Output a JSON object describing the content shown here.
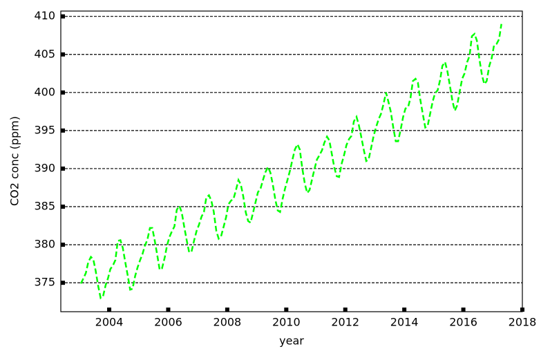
{
  "chart_data": {
    "type": "line",
    "xlabel": "year",
    "ylabel": "CO2 conc (ppm)",
    "xlim": [
      2002.36,
      2018
    ],
    "ylim": [
      371.2,
      410.7
    ],
    "xticks": [
      2004,
      2006,
      2008,
      2010,
      2012,
      2014,
      2016,
      2018
    ],
    "yticks": [
      375,
      380,
      385,
      390,
      395,
      400,
      405,
      410
    ],
    "grid": true,
    "x": [
      2003.04,
      2003.13,
      2003.21,
      2003.29,
      2003.38,
      2003.46,
      2003.54,
      2003.63,
      2003.71,
      2003.79,
      2003.88,
      2003.96,
      2004.04,
      2004.13,
      2004.21,
      2004.29,
      2004.38,
      2004.46,
      2004.54,
      2004.63,
      2004.71,
      2004.79,
      2004.88,
      2004.96,
      2005.04,
      2005.13,
      2005.21,
      2005.29,
      2005.38,
      2005.46,
      2005.54,
      2005.63,
      2005.71,
      2005.79,
      2005.88,
      2005.96,
      2006.04,
      2006.13,
      2006.21,
      2006.29,
      2006.38,
      2006.46,
      2006.54,
      2006.63,
      2006.71,
      2006.79,
      2006.88,
      2006.96,
      2007.04,
      2007.13,
      2007.21,
      2007.29,
      2007.38,
      2007.46,
      2007.54,
      2007.63,
      2007.71,
      2007.79,
      2007.88,
      2007.96,
      2008.04,
      2008.13,
      2008.21,
      2008.29,
      2008.38,
      2008.46,
      2008.54,
      2008.63,
      2008.71,
      2008.79,
      2008.88,
      2008.96,
      2009.04,
      2009.13,
      2009.21,
      2009.29,
      2009.38,
      2009.46,
      2009.54,
      2009.63,
      2009.71,
      2009.79,
      2009.88,
      2009.96,
      2010.04,
      2010.13,
      2010.21,
      2010.29,
      2010.38,
      2010.46,
      2010.54,
      2010.63,
      2010.71,
      2010.79,
      2010.88,
      2010.96,
      2011.04,
      2011.13,
      2011.21,
      2011.29,
      2011.38,
      2011.46,
      2011.54,
      2011.63,
      2011.71,
      2011.79,
      2011.88,
      2011.96,
      2012.04,
      2012.13,
      2012.21,
      2012.29,
      2012.38,
      2012.46,
      2012.54,
      2012.63,
      2012.71,
      2012.79,
      2012.88,
      2012.96,
      2013.04,
      2013.13,
      2013.21,
      2013.29,
      2013.38,
      2013.46,
      2013.54,
      2013.63,
      2013.71,
      2013.79,
      2013.88,
      2013.96,
      2014.04,
      2014.13,
      2014.21,
      2014.29,
      2014.38,
      2014.46,
      2014.54,
      2014.63,
      2014.71,
      2014.79,
      2014.88,
      2014.96,
      2015.04,
      2015.13,
      2015.21,
      2015.29,
      2015.38,
      2015.46,
      2015.54,
      2015.63,
      2015.71,
      2015.79,
      2015.88,
      2015.96,
      2016.04,
      2016.13,
      2016.21,
      2016.29,
      2016.38,
      2016.46,
      2016.54,
      2016.63,
      2016.71,
      2016.79,
      2016.88,
      2016.96,
      2017.04,
      2017.13,
      2017.21,
      2017.29
    ],
    "series": [
      {
        "color": "#00ff00",
        "values": [
          374.9,
          375.6,
          376.3,
          377.7,
          378.4,
          378.1,
          376.6,
          374.5,
          373.0,
          373.2,
          374.7,
          375.6,
          376.8,
          377.3,
          378.0,
          380.5,
          380.6,
          379.6,
          377.8,
          375.9,
          374.1,
          374.2,
          375.9,
          377.0,
          377.9,
          378.8,
          379.9,
          380.6,
          382.2,
          382.2,
          380.6,
          378.6,
          376.7,
          376.9,
          378.3,
          379.9,
          381.0,
          381.8,
          382.4,
          384.6,
          385.1,
          384.2,
          382.4,
          380.5,
          379.0,
          379.1,
          380.6,
          381.8,
          382.6,
          383.7,
          384.3,
          386.2,
          386.5,
          385.8,
          384.4,
          381.8,
          380.8,
          381.1,
          382.4,
          383.6,
          385.3,
          385.8,
          386.0,
          387.1,
          388.5,
          387.9,
          386.4,
          384.2,
          383.1,
          382.9,
          384.3,
          385.6,
          386.9,
          387.4,
          388.5,
          389.5,
          390.2,
          389.5,
          388.0,
          385.9,
          384.5,
          384.3,
          386.1,
          387.4,
          388.5,
          389.8,
          391.2,
          392.5,
          393.2,
          392.5,
          390.1,
          388.0,
          386.8,
          387.2,
          388.7,
          390.0,
          391.2,
          391.8,
          392.4,
          393.4,
          394.2,
          393.7,
          392.0,
          390.1,
          389.0,
          388.9,
          390.7,
          391.8,
          393.1,
          393.9,
          394.3,
          396.2,
          396.8,
          395.7,
          394.2,
          392.4,
          391.0,
          391.2,
          392.8,
          394.3,
          395.4,
          396.5,
          397.2,
          398.4,
          400.0,
          398.8,
          397.5,
          395.3,
          393.6,
          393.6,
          395.2,
          396.8,
          397.9,
          398.1,
          399.3,
          401.5,
          401.8,
          401.3,
          399.1,
          397.1,
          395.4,
          395.6,
          397.3,
          398.8,
          399.9,
          400.3,
          401.6,
          403.5,
          404.0,
          402.8,
          401.0,
          398.9,
          397.6,
          398.3,
          400.2,
          401.8,
          402.5,
          404.0,
          404.8,
          407.4,
          407.7,
          406.8,
          404.5,
          402.3,
          401.1,
          401.5,
          403.5,
          404.5,
          406.2,
          406.4,
          407.0,
          409.0
        ]
      }
    ]
  }
}
